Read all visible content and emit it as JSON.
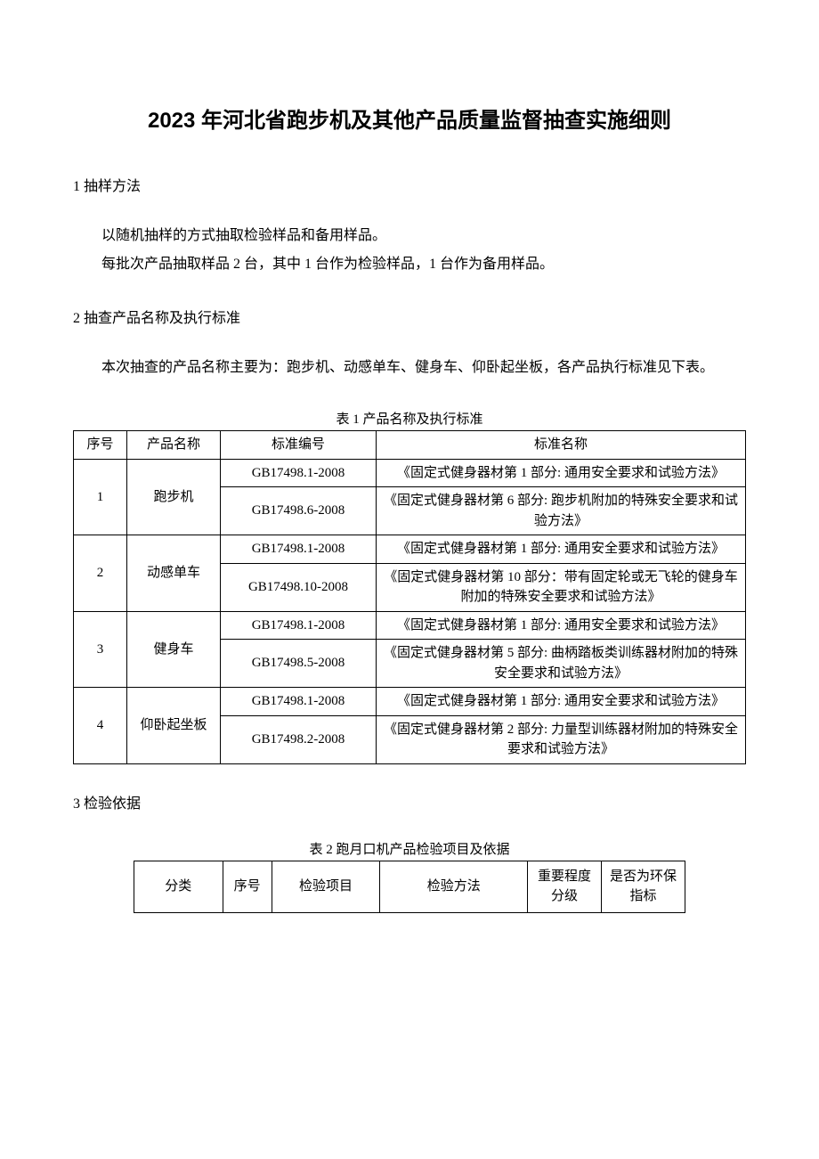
{
  "colors": {
    "background": "#ffffff",
    "text": "#000000",
    "border": "#000000"
  },
  "typography": {
    "title_fontsize": 24,
    "title_font": "SimHei",
    "body_fontsize": 16,
    "body_font": "SimSun",
    "table_fontsize": 15
  },
  "title": "2023 年河北省跑步机及其他产品质量监督抽查实施细则",
  "section1": {
    "heading": "1 抽样方法",
    "para1": "以随机抽样的方式抽取检验样品和备用样品。",
    "para2": "每批次产品抽取样品 2 台，其中 1 台作为检验样品，1 台作为备用样品。"
  },
  "section2": {
    "heading": "2 抽查产品名称及执行标准",
    "para1": "本次抽查的产品名称主要为：跑步机、动感单车、健身车、仰卧起坐板，各产品执行标准见下表。",
    "table_caption": "表 1 产品名称及执行标准",
    "table": {
      "columns": [
        "序号",
        "产品名称",
        "标准编号",
        "标准名称"
      ],
      "rows": [
        {
          "seq": "1",
          "product": "跑步机",
          "standards": [
            {
              "code": "GB17498.1-2008",
              "name": "《固定式健身器材第 1 部分: 通用安全要求和试验方法》"
            },
            {
              "code": "GB17498.6-2008",
              "name": "《固定式健身器材第 6 部分: 跑步机附加的特殊安全要求和试验方法》"
            }
          ]
        },
        {
          "seq": "2",
          "product": "动感单车",
          "standards": [
            {
              "code": "GB17498.1-2008",
              "name": "《固定式健身器材第 1 部分: 通用安全要求和试验方法》"
            },
            {
              "code": "GB17498.10-2008",
              "name": "《固定式健身器材第 10 部分：带有固定轮或无飞轮的健身车附加的特殊安全要求和试验方法》"
            }
          ]
        },
        {
          "seq": "3",
          "product": "健身车",
          "standards": [
            {
              "code": "GB17498.1-2008",
              "name": "《固定式健身器材第 1 部分: 通用安全要求和试验方法》"
            },
            {
              "code": "GB17498.5-2008",
              "name": "《固定式健身器材第 5 部分: 曲柄踏板类训练器材附加的特殊安全要求和试验方法》"
            }
          ]
        },
        {
          "seq": "4",
          "product": "仰卧起坐板",
          "standards": [
            {
              "code": "GB17498.1-2008",
              "name": "《固定式健身器材第 1 部分: 通用安全要求和试验方法》"
            },
            {
              "code": "GB17498.2-2008",
              "name": "《固定式健身器材第 2 部分: 力量型训练器材附加的特殊安全要求和试验方法》"
            }
          ]
        }
      ]
    }
  },
  "section3": {
    "heading": "3 检验依据",
    "table_caption": "表 2 跑月口机产品检验项目及依据",
    "table": {
      "columns": [
        "分类",
        "序号",
        "检验项目",
        "检验方法",
        "重要程度分级",
        "是否为环保指标"
      ]
    }
  }
}
